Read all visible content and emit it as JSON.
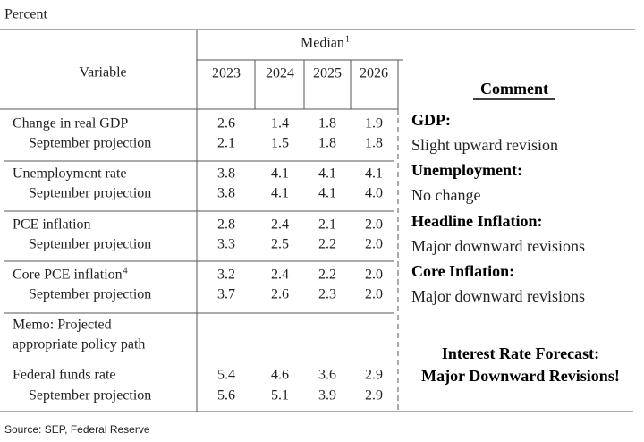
{
  "unit": "Percent",
  "header": {
    "variable": "Variable",
    "median": "Median",
    "median_note": "1",
    "years": [
      "2023",
      "2024",
      "2025",
      "2026"
    ],
    "comment": "Comment"
  },
  "rows": [
    {
      "label": "Change in real GDP",
      "values": [
        "2.6",
        "1.4",
        "1.8",
        "1.9"
      ],
      "sub_label": "September projection",
      "sub_values": [
        "2.1",
        "1.5",
        "1.8",
        "1.8"
      ],
      "comment_title": "GDP:",
      "comment": "Slight upward revision"
    },
    {
      "label": "Unemployment rate",
      "values": [
        "3.8",
        "4.1",
        "4.1",
        "4.1"
      ],
      "sub_label": "September projection",
      "sub_values": [
        "3.8",
        "4.1",
        "4.1",
        "4.0"
      ],
      "comment_title": "Unemployment:",
      "comment": "No change"
    },
    {
      "label": "PCE inflation",
      "values": [
        "2.8",
        "2.4",
        "2.1",
        "2.0"
      ],
      "sub_label": "September projection",
      "sub_values": [
        "3.3",
        "2.5",
        "2.2",
        "2.0"
      ],
      "comment_title": "Headline Inflation:",
      "comment": "Major downward revisions"
    },
    {
      "label": "Core PCE inflation",
      "note": "4",
      "values": [
        "3.2",
        "2.4",
        "2.2",
        "2.0"
      ],
      "sub_label": "September projection",
      "sub_values": [
        "3.7",
        "2.6",
        "2.3",
        "2.0"
      ],
      "comment_title": "Core Inflation:",
      "comment": "Major downward revisions"
    }
  ],
  "memo": {
    "heading": [
      "Memo: Projected",
      "appropriate policy path"
    ],
    "label": "Federal funds rate",
    "values": [
      "5.4",
      "4.6",
      "3.6",
      "2.9"
    ],
    "sub_label": "September projection",
    "sub_values": [
      "5.6",
      "5.1",
      "3.9",
      "2.9"
    ],
    "comment_title": "Interest Rate Forecast:",
    "comment": "Major Downward Revisions!"
  },
  "source": "Source: SEP, Federal Reserve"
}
